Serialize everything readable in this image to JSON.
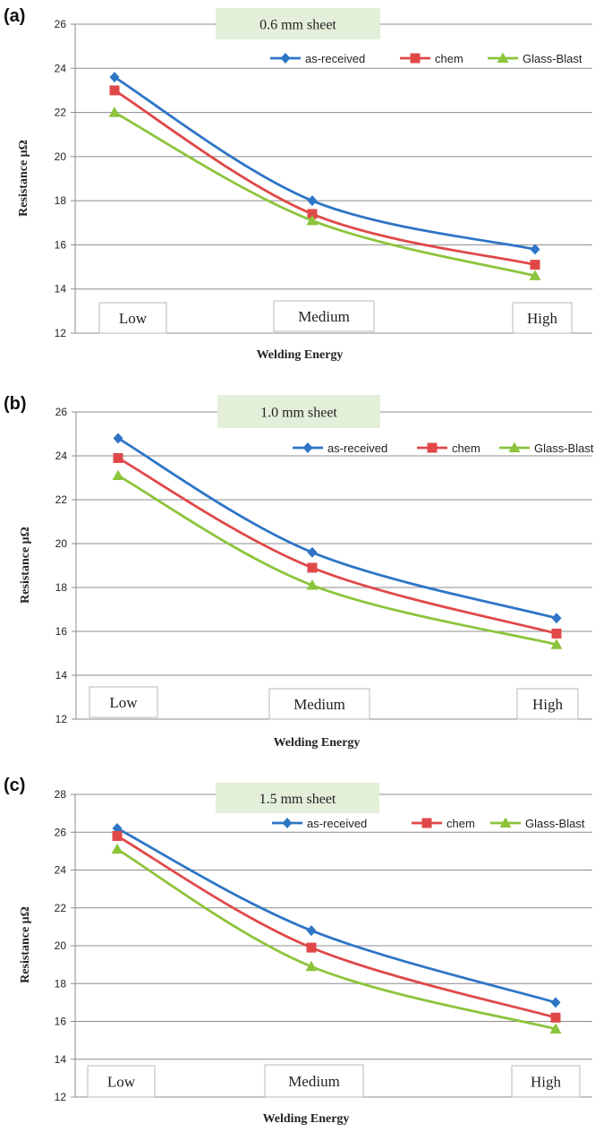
{
  "chart_data": [
    {
      "type": "line",
      "panel_label": "(a)",
      "title": "0.6 mm  sheet",
      "xlabel": "Welding Energy",
      "ylabel": "Resistance μΩ",
      "categories": [
        "Low",
        "Medium",
        "High"
      ],
      "ylim": [
        12,
        26
      ],
      "yticks": [
        12,
        14,
        16,
        18,
        20,
        22,
        24,
        26
      ],
      "grid": true,
      "legend_position": "top-right",
      "series": [
        {
          "name": "as-received",
          "values": [
            23.6,
            18.0,
            15.8
          ],
          "color": "#2e75c6",
          "marker": "diamond"
        },
        {
          "name": "chem",
          "values": [
            23.0,
            17.4,
            15.1
          ],
          "color": "#e04848",
          "marker": "square"
        },
        {
          "name": "Glass-Blast",
          "values": [
            22.0,
            17.1,
            14.6
          ],
          "color": "#8cc43c",
          "marker": "triangle"
        }
      ]
    },
    {
      "type": "line",
      "panel_label": "(b)",
      "title": "1.0 mm  sheet",
      "xlabel": "Welding Energy",
      "ylabel": "Resistance μΩ",
      "categories": [
        "Low",
        "Medium",
        "High"
      ],
      "ylim": [
        12,
        26
      ],
      "yticks": [
        12,
        14,
        16,
        18,
        20,
        22,
        24,
        26
      ],
      "grid": true,
      "legend_position": "top-right",
      "series": [
        {
          "name": "as-received",
          "values": [
            24.8,
            19.6,
            16.6
          ],
          "color": "#2e75c6",
          "marker": "diamond"
        },
        {
          "name": "chem",
          "values": [
            23.9,
            18.9,
            15.9
          ],
          "color": "#e04848",
          "marker": "square"
        },
        {
          "name": "Glass-Blast",
          "values": [
            23.1,
            18.1,
            15.4
          ],
          "color": "#8cc43c",
          "marker": "triangle"
        }
      ]
    },
    {
      "type": "line",
      "panel_label": "(c)",
      "title": "1.5 mm  sheet",
      "xlabel": "Welding Energy",
      "ylabel": "Resistance μΩ",
      "categories": [
        "Low",
        "Medium",
        "High"
      ],
      "ylim": [
        12,
        28
      ],
      "yticks": [
        12,
        14,
        16,
        18,
        20,
        22,
        24,
        26,
        28
      ],
      "grid": true,
      "legend_position": "top-right",
      "series": [
        {
          "name": "as-received",
          "values": [
            26.2,
            20.8,
            17.0
          ],
          "color": "#2e75c6",
          "marker": "diamond"
        },
        {
          "name": "chem",
          "values": [
            25.8,
            19.9,
            16.2
          ],
          "color": "#e04848",
          "marker": "square"
        },
        {
          "name": "Glass-Blast",
          "values": [
            25.1,
            18.9,
            15.6
          ],
          "color": "#8cc43c",
          "marker": "triangle"
        }
      ]
    }
  ]
}
